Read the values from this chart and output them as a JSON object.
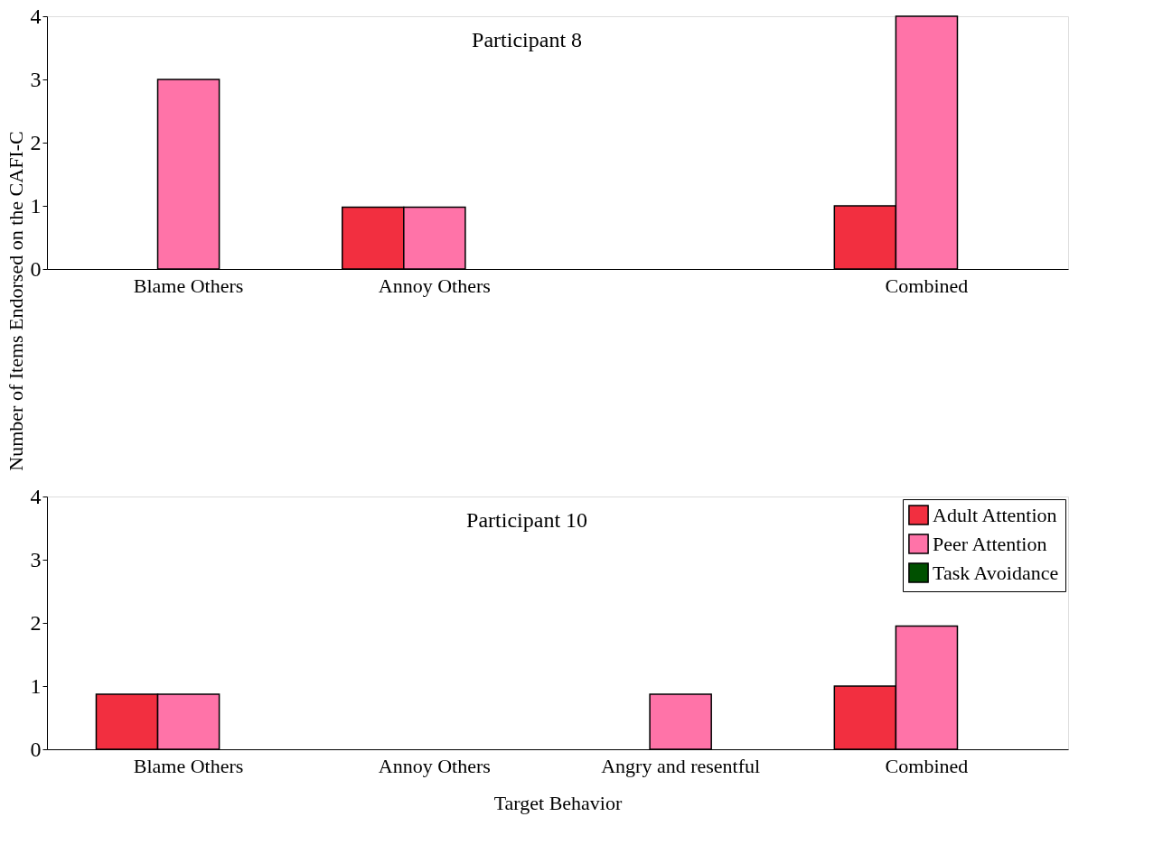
{
  "chart_data": [
    {
      "type": "bar",
      "title": "Participant 8",
      "ylabel": "Number of Items Endorsed on the CAFI-C",
      "categories": [
        "Blame Others",
        "Annoy Others",
        null,
        "Combined"
      ],
      "ylim": [
        0,
        4
      ],
      "yticks": [
        0,
        1,
        2,
        3,
        4
      ],
      "grid": false,
      "legend": false,
      "series": [
        {
          "color": "#f22f40",
          "values": [
            null,
            0.98,
            null,
            1
          ]
        },
        {
          "color": "#ff73a8",
          "values": [
            3,
            0.98,
            null,
            4
          ]
        },
        {
          "color": "#005000",
          "values": [
            null,
            null,
            null,
            null
          ]
        }
      ]
    },
    {
      "type": "bar",
      "title": "Participant 10",
      "xlabel": "Target Behavior",
      "categories": [
        "Blame Others",
        "Annoy Others",
        "Angry and resentful",
        "Combined"
      ],
      "ylim": [
        0,
        4
      ],
      "yticks": [
        0,
        1,
        2,
        3,
        4
      ],
      "grid": false,
      "legend": "top right",
      "series": [
        {
          "name": "Adult Attention",
          "color": "#f22f40",
          "values": [
            0.87,
            null,
            null,
            1
          ]
        },
        {
          "name": "Peer Attention",
          "color": "#ff73a8",
          "values": [
            0.87,
            null,
            0.87,
            1.95
          ]
        },
        {
          "name": "Task Avoidance",
          "color": "#005000",
          "values": [
            null,
            null,
            null,
            null
          ]
        }
      ]
    }
  ]
}
